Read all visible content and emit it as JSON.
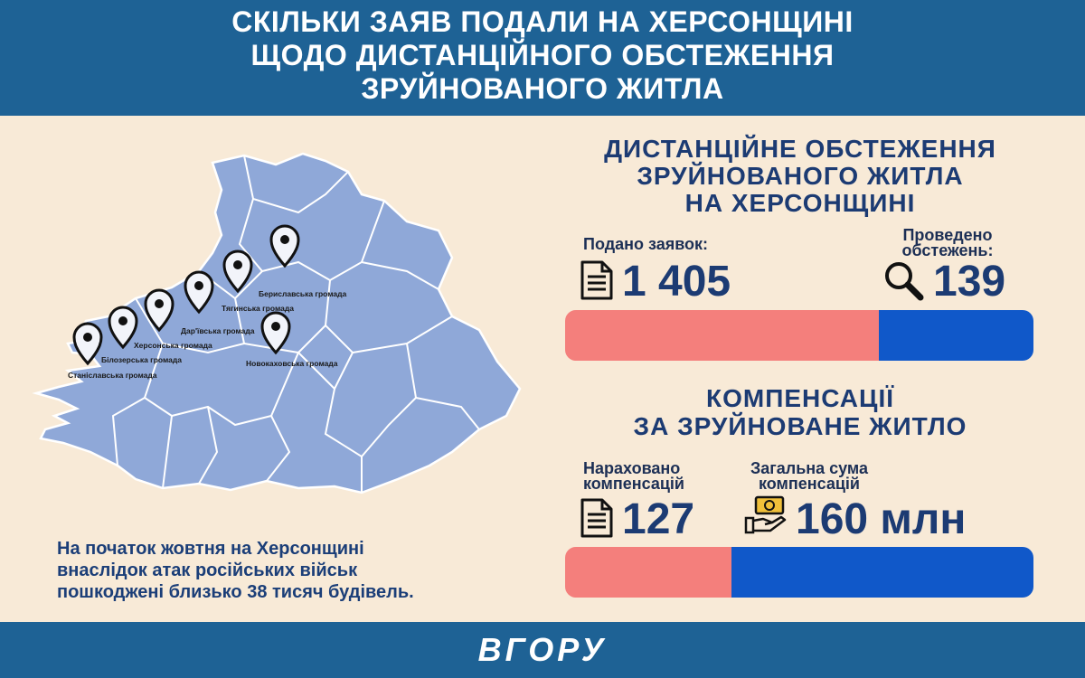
{
  "header": {
    "title_lines": [
      "СКІЛЬКИ ЗАЯВ ПОДАЛИ НА ХЕРСОНЩИНІ",
      "ЩОДО ДИСТАНЦІЙНОГО ОБСТЕЖЕННЯ",
      "ЗРУЙНОВАНОГО ЖИТЛА"
    ]
  },
  "map": {
    "communities": [
      "Бериславська громада",
      "Тягинська громада",
      "Дар'ївська громада",
      "Херсонська громада",
      "Білозерська громада",
      "Станіславська громада",
      "Новокаховська громада"
    ]
  },
  "note": {
    "lines": [
      "На початок жовтня на Херсонщині",
      "внаслідок атак російських військ",
      "пошкоджені близько 38 тисяч будівель."
    ]
  },
  "inspection": {
    "title_lines": [
      "ДИСТАНЦІЙНЕ ОБСТЕЖЕННЯ",
      "ЗРУЙНОВАНОГО ЖИТЛА",
      "НА ХЕРСОНЩИНІ"
    ],
    "applications_label": "Подано заявок:",
    "applications_value": "1 405",
    "inspections_label_lines": [
      "Проведено",
      "обстежень:"
    ],
    "inspections_value": "139",
    "bar_fraction": 0.67
  },
  "compensation": {
    "title_lines": [
      "КОМПЕНСАЦІЇ",
      "ЗА ЗРУЙНОВАНЕ ЖИТЛО"
    ],
    "accrued_label_lines": [
      "Нараховано",
      "компенсацій"
    ],
    "accrued_value": "127",
    "total_label_lines": [
      "Загальна сума",
      "компенсацій"
    ],
    "total_value": "160 млн",
    "bar_fraction": 0.355
  },
  "footer": {
    "logo": "ВГОРУ"
  },
  "colors": {
    "header_bg": "#1e6295",
    "page_bg": "#f8ead7",
    "map_fill": "#8fa8d8",
    "bar_red": "#f47f7c",
    "bar_blue": "#1058c9",
    "title_text": "#1c3b73"
  },
  "icons": [
    "document-icon",
    "magnifier-icon",
    "money-hand-icon",
    "map-pin-icon"
  ]
}
